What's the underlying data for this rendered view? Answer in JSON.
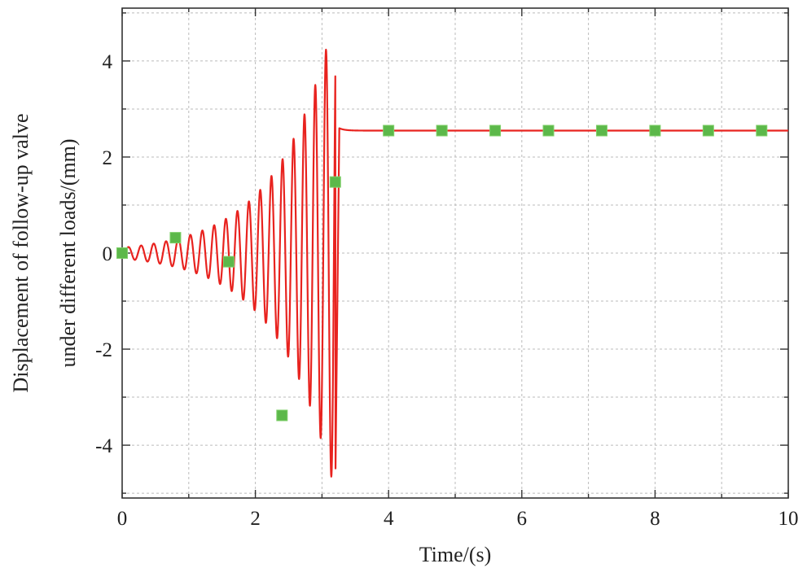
{
  "chart_data": {
    "type": "line",
    "title": "",
    "xlabel": "Time/(s)",
    "ylabel": [
      "Displacement of follow-up valve",
      "under different loads/(mm)"
    ],
    "xlim": [
      0,
      10
    ],
    "ylim": [
      -5.1,
      5.1
    ],
    "xticks": [
      "0",
      "2",
      "4",
      "6",
      "8",
      "10"
    ],
    "yticks": [
      "-4",
      "-2",
      "0",
      "2",
      "4"
    ],
    "grid": true,
    "legend": "none",
    "colors": {
      "line": "#e8231f",
      "marker": "#5cb84a",
      "grid": "#bbbbbb",
      "axis": "#333333"
    },
    "series": [
      {
        "style": "line",
        "description_points": {
          "oscillation": {
            "start_time": 0.05,
            "end_time": 3.2,
            "start_amplitude": 0.12,
            "end_amplitude": 5.0,
            "start_frequency_hz": 5.2,
            "end_frequency_hz": 6.3
          },
          "steady_value": 2.55
        }
      },
      {
        "style": "markers",
        "marker": "square",
        "x": [
          0.0,
          0.8,
          1.6,
          2.4,
          3.2,
          4.0,
          4.8,
          5.6,
          6.4,
          7.2,
          8.0,
          8.8,
          9.6
        ],
        "y": [
          0.0,
          0.32,
          -0.18,
          -3.38,
          1.48,
          2.55,
          2.55,
          2.55,
          2.55,
          2.55,
          2.55,
          2.55,
          2.55
        ]
      }
    ]
  }
}
